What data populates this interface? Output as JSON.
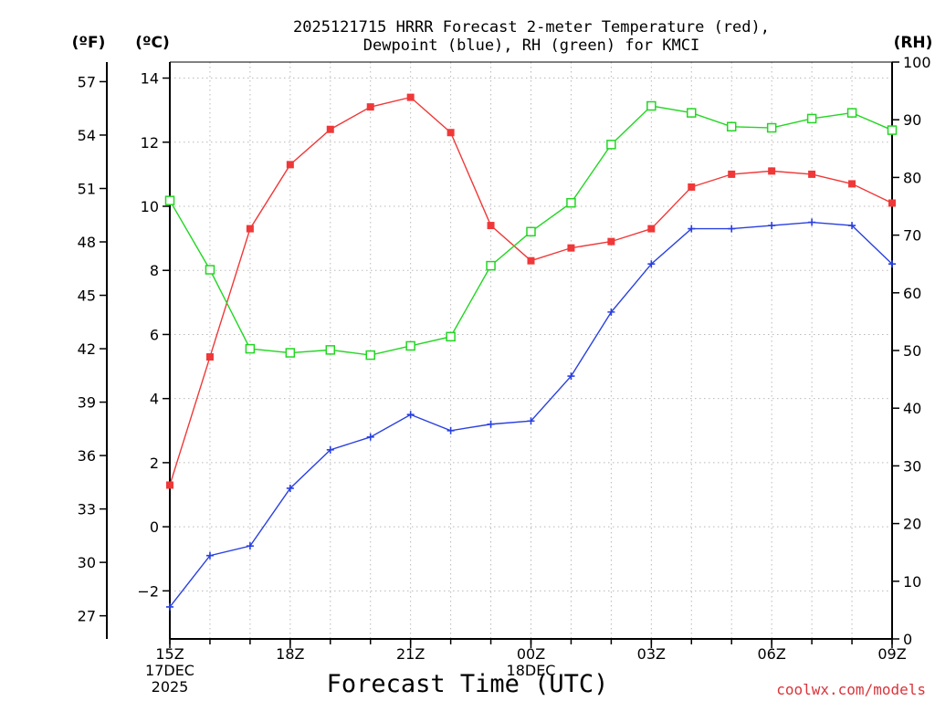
{
  "chart_data": {
    "type": "line",
    "title_lines": [
      "2025121715 HRRR Forecast 2-meter Temperature (red),",
      "Dewpoint (blue), RH (green) for KMCI"
    ],
    "xlabel": "Forecast Time (UTC)",
    "credit": "coolwx.com/models",
    "units": {
      "left_f": "(ºF)",
      "left_c": "(ºC)",
      "right": "(RH)"
    },
    "x": [
      "15Z",
      "16Z",
      "17Z",
      "18Z",
      "19Z",
      "20Z",
      "21Z",
      "22Z",
      "23Z",
      "00Z",
      "01Z",
      "02Z",
      "03Z",
      "04Z",
      "05Z",
      "06Z",
      "07Z",
      "08Z",
      "09Z"
    ],
    "x_tick_labels": [
      {
        "index": 0,
        "lines": [
          "15Z",
          "17DEC",
          "2025"
        ]
      },
      {
        "index": 3,
        "lines": [
          "18Z"
        ]
      },
      {
        "index": 6,
        "lines": [
          "21Z"
        ]
      },
      {
        "index": 9,
        "lines": [
          "00Z",
          "18DEC"
        ]
      },
      {
        "index": 12,
        "lines": [
          "03Z"
        ]
      },
      {
        "index": 15,
        "lines": [
          "06Z"
        ]
      },
      {
        "index": 18,
        "lines": [
          "09Z"
        ]
      }
    ],
    "celsius_axis": {
      "range": [
        -3.5,
        14.5
      ],
      "ticks": [
        -2,
        0,
        2,
        4,
        6,
        8,
        10,
        12,
        14
      ]
    },
    "fahrenheit_axis": {
      "ticks": [
        27,
        30,
        33,
        36,
        39,
        42,
        45,
        48,
        51,
        54,
        57
      ]
    },
    "rh_axis": {
      "range": [
        0,
        100
      ],
      "ticks": [
        0,
        10,
        20,
        30,
        40,
        50,
        60,
        70,
        80,
        90,
        100
      ]
    },
    "grid": true,
    "series": [
      {
        "name": "Temperature",
        "axis": "celsius",
        "color": "#f03838",
        "marker": "filled-square",
        "values": [
          1.3,
          5.3,
          9.3,
          11.3,
          12.4,
          13.1,
          13.4,
          12.3,
          9.4,
          8.3,
          8.7,
          8.9,
          9.3,
          10.6,
          11.0,
          11.1,
          11.0,
          10.7,
          10.1
        ]
      },
      {
        "name": "Dewpoint",
        "axis": "celsius",
        "color": "#2940e0",
        "marker": "plus",
        "values": [
          -2.5,
          -0.9,
          -0.6,
          1.2,
          2.4,
          2.8,
          3.5,
          3.0,
          3.2,
          3.3,
          4.7,
          6.7,
          8.2,
          9.3,
          9.3,
          9.4,
          9.5,
          9.4,
          8.2
        ]
      },
      {
        "name": "RH",
        "axis": "rh",
        "color": "#22d622",
        "marker": "open-square",
        "values": [
          76,
          64,
          50.3,
          49.6,
          50.1,
          49.2,
          50.8,
          52.4,
          64.7,
          70.6,
          75.6,
          85.7,
          92.4,
          91.2,
          88.8,
          88.6,
          90.2,
          91.2,
          88.2
        ]
      }
    ]
  }
}
